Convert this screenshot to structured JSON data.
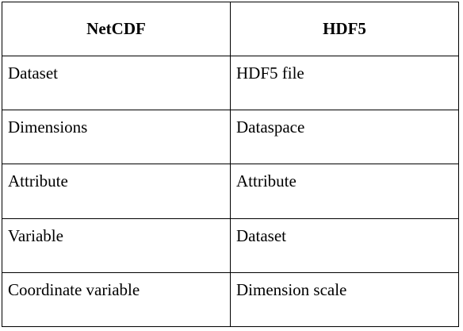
{
  "table": {
    "headers": [
      "NetCDF",
      "HDF5"
    ],
    "rows": [
      [
        "Dataset",
        "HDF5 file"
      ],
      [
        "Dimensions",
        "Dataspace"
      ],
      [
        "Attribute",
        "Attribute"
      ],
      [
        "Variable",
        "Dataset"
      ],
      [
        "Coordinate variable",
        "Dimension scale"
      ]
    ]
  }
}
